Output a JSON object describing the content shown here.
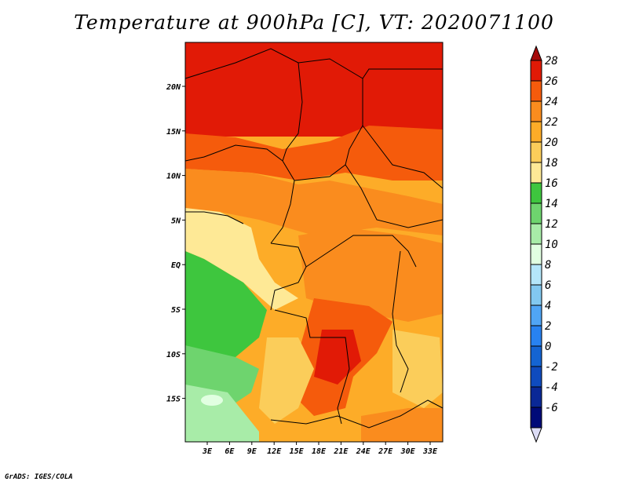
{
  "title": "Temperature at 900hPa [C], VT: 2020071100",
  "credit": "GrADS: IGES/COLA",
  "map": {
    "region": "Central Africa",
    "lon_ticks": [
      "3E",
      "6E",
      "9E",
      "12E",
      "15E",
      "18E",
      "21E",
      "24E",
      "27E",
      "30E",
      "33E"
    ],
    "lat_ticks": [
      "20N",
      "15N",
      "10N",
      "5N",
      "EQ",
      "5S",
      "10S",
      "15S"
    ]
  },
  "colorbar": {
    "labels": [
      "28",
      "26",
      "24",
      "22",
      "20",
      "18",
      "16",
      "14",
      "12",
      "10",
      "8",
      "6",
      "4",
      "2",
      "0",
      "-2",
      "-4",
      "-6"
    ],
    "colors": [
      "#a50a0a",
      "#e11a06",
      "#f55b0c",
      "#fa8c1e",
      "#fdac28",
      "#fbcd5a",
      "#fee996",
      "#3ec63e",
      "#6ed46e",
      "#a8eca8",
      "#e1ffe1",
      "#b4e6fa",
      "#82c8f0",
      "#50a5f5",
      "#2882f0",
      "#1464d2",
      "#0f4bbe",
      "#0a2896",
      "#000a78",
      "#dcdcf5"
    ]
  }
}
